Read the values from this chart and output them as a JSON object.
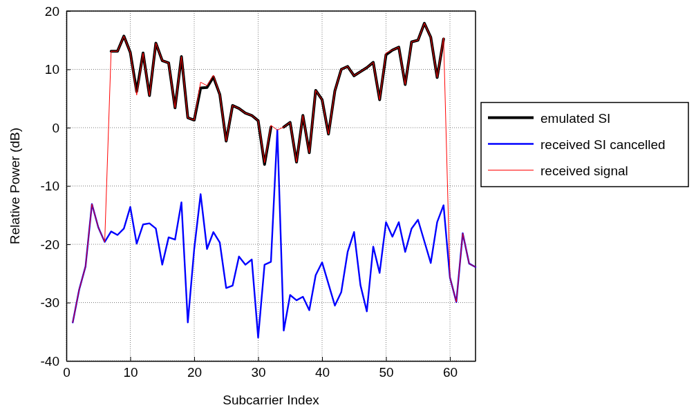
{
  "chart_data": {
    "type": "line",
    "xlabel": "Subcarrier Index",
    "ylabel": "Relative Power (dB)",
    "x": [
      1,
      2,
      3,
      4,
      5,
      6,
      7,
      8,
      9,
      10,
      11,
      12,
      13,
      14,
      15,
      16,
      17,
      18,
      19,
      20,
      21,
      22,
      23,
      24,
      25,
      26,
      27,
      28,
      29,
      30,
      31,
      32,
      33,
      34,
      35,
      36,
      37,
      38,
      39,
      40,
      41,
      42,
      43,
      44,
      45,
      46,
      47,
      48,
      49,
      50,
      51,
      52,
      53,
      54,
      55,
      56,
      57,
      58,
      59,
      60,
      61,
      62,
      63,
      64
    ],
    "xlim": [
      0,
      64
    ],
    "xticks": [
      0,
      10,
      20,
      30,
      40,
      50,
      60
    ],
    "ylim": [
      -40,
      20
    ],
    "yticks": [
      -40,
      -30,
      -20,
      -10,
      0,
      10,
      20
    ],
    "grid": true,
    "legend": "right",
    "line_style": "solid",
    "marker": "none",
    "series": [
      {
        "name": "emulated SI",
        "color": "#000000",
        "values": [
          null,
          null,
          null,
          null,
          null,
          null,
          13.1,
          13.1,
          15.7,
          12.9,
          6.2,
          12.8,
          5.5,
          14.5,
          11.5,
          11.1,
          3.4,
          12.2,
          1.7,
          1.3,
          6.8,
          6.9,
          8.7,
          5.7,
          -2.3,
          3.8,
          3.3,
          2.5,
          2.1,
          1.2,
          -6.3,
          0.1,
          null,
          0.1,
          0.9,
          -5.9,
          2.1,
          -4.3,
          6.4,
          4.8,
          -1.1,
          6.3,
          10.0,
          10.5,
          8.9,
          9.6,
          10.3,
          11.2,
          4.8,
          12.5,
          13.3,
          13.8,
          7.4,
          14.7,
          15.0,
          17.9,
          15.5,
          8.6,
          15.2,
          null,
          null,
          null,
          null,
          null
        ]
      },
      {
        "name": "received SI cancelled",
        "color": "#0000ff",
        "values": [
          -33.4,
          -27.8,
          -23.8,
          -13.1,
          -17.1,
          -19.6,
          -17.8,
          -18.4,
          -17.3,
          -13.6,
          -19.9,
          -16.6,
          -16.4,
          -17.3,
          -23.5,
          -18.8,
          -19.2,
          -12.8,
          -33.4,
          -20.8,
          -11.4,
          -20.8,
          -17.9,
          -19.7,
          -27.5,
          -27.1,
          -22.1,
          -23.5,
          -22.6,
          -36.0,
          -23.5,
          -23.0,
          -0.4,
          -34.8,
          -28.7,
          -29.6,
          -29.0,
          -31.3,
          -25.3,
          -23.1,
          -26.8,
          -30.5,
          -28.2,
          -21.3,
          -17.9,
          -27.0,
          -31.5,
          -20.4,
          -24.9,
          -16.2,
          -18.7,
          -16.2,
          -21.3,
          -17.3,
          -15.8,
          -19.5,
          -23.2,
          -16.2,
          -13.3,
          -25.7,
          -29.9,
          -18.1,
          -23.3,
          -23.9
        ]
      },
      {
        "name": "received signal",
        "color": "#ff0000",
        "values": [
          -33.4,
          -27.8,
          -23.8,
          -13.1,
          -17.1,
          -19.6,
          13.1,
          13.1,
          15.7,
          12.9,
          5.6,
          12.8,
          5.5,
          14.5,
          11.5,
          11.1,
          3.4,
          12.2,
          1.7,
          1.3,
          7.8,
          7.2,
          9.0,
          5.7,
          -2.3,
          3.8,
          3.3,
          2.5,
          2.1,
          1.2,
          -6.0,
          0.4,
          -0.4,
          0.1,
          0.9,
          -5.9,
          2.1,
          -4.3,
          6.4,
          4.8,
          -1.1,
          6.3,
          10.0,
          10.5,
          8.9,
          9.6,
          10.3,
          11.2,
          4.8,
          12.8,
          13.3,
          13.8,
          7.4,
          14.7,
          15.0,
          17.9,
          15.5,
          8.6,
          15.4,
          -25.7,
          -29.9,
          -18.1,
          -23.3,
          -23.9
        ]
      }
    ]
  }
}
